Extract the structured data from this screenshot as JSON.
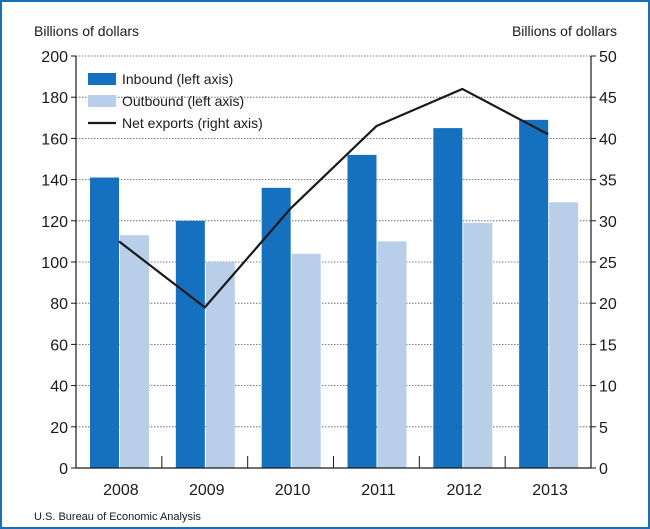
{
  "chart_data": {
    "type": "bar",
    "categories": [
      "2008",
      "2009",
      "2010",
      "2011",
      "2012",
      "2013"
    ],
    "series": [
      {
        "name": "Inbound (left axis)",
        "type": "bar",
        "axis": "left",
        "color": "#1570bf",
        "values": [
          141,
          120,
          136,
          152,
          165,
          169
        ]
      },
      {
        "name": "Outbound (left axis)",
        "type": "bar",
        "axis": "left",
        "color": "#b9cfe9",
        "values": [
          113,
          100,
          104,
          110,
          119,
          129
        ]
      },
      {
        "name": "Net exports (right axis)",
        "type": "line",
        "axis": "right",
        "color": "#1a1a1a",
        "values": [
          27.5,
          19.5,
          31.5,
          41.5,
          46,
          40.5
        ]
      }
    ],
    "left_axis": {
      "label": "Billions of dollars",
      "min": 0,
      "max": 200,
      "ticks": [
        0,
        20,
        40,
        60,
        80,
        100,
        120,
        140,
        160,
        180,
        200
      ]
    },
    "right_axis": {
      "label": "Billions of dollars",
      "min": 0,
      "max": 50,
      "ticks": [
        0,
        5,
        10,
        15,
        20,
        25,
        30,
        35,
        40,
        45,
        50
      ]
    },
    "grid": true,
    "legend_position": "top-left",
    "source": "U.S. Bureau of Economic Analysis",
    "colors": {
      "frame": "#1b6fb8",
      "grid": "#555555",
      "axis": "#1a1a1a"
    }
  }
}
